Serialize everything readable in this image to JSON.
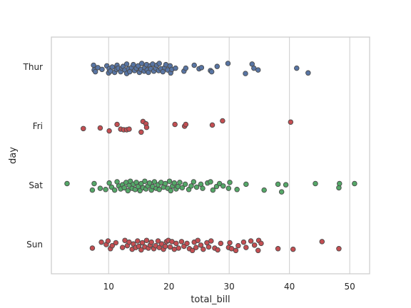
{
  "chart_data": {
    "type": "scatter",
    "subtype": "strip",
    "xlabel": "total_bill",
    "ylabel": "day",
    "xlim": [
      0.5,
      53.3
    ],
    "xticks": [
      10,
      20,
      30,
      40,
      50
    ],
    "categories": [
      "Thur",
      "Fri",
      "Sat",
      "Sun"
    ],
    "grid": "vertical",
    "marker_edge_color": "#4a4a4a",
    "series": [
      {
        "category": "Thur",
        "color": "#5875A4",
        "points": [
          [
            7.5,
            -0.03
          ],
          [
            7.6,
            0.05
          ],
          [
            7.8,
            0.08
          ],
          [
            8.2,
            0.01
          ],
          [
            8.9,
            0.04
          ],
          [
            9.7,
            -0.02
          ],
          [
            10.0,
            0.1
          ],
          [
            10.1,
            0.03
          ],
          [
            10.3,
            0.07
          ],
          [
            10.6,
            0.0
          ],
          [
            11.0,
            0.09
          ],
          [
            11.3,
            0.04
          ],
          [
            11.4,
            -0.03
          ],
          [
            11.6,
            0.02
          ],
          [
            12.0,
            0.08
          ],
          [
            12.2,
            0.02
          ],
          [
            12.4,
            -0.01
          ],
          [
            12.7,
            0.05
          ],
          [
            13.0,
            0.11
          ],
          [
            13.0,
            -0.05
          ],
          [
            13.3,
            0.03
          ],
          [
            13.5,
            0.08
          ],
          [
            13.8,
            0.01
          ],
          [
            14.1,
            -0.04
          ],
          [
            14.3,
            0.06
          ],
          [
            14.6,
            0.02
          ],
          [
            14.9,
            -0.02
          ],
          [
            15.1,
            0.09
          ],
          [
            15.4,
            0.04
          ],
          [
            15.5,
            -0.06
          ],
          [
            15.9,
            0.07
          ],
          [
            16.0,
            0.01
          ],
          [
            16.3,
            -0.04
          ],
          [
            16.4,
            0.05
          ],
          [
            16.6,
            0.09
          ],
          [
            16.9,
            -0.02
          ],
          [
            17.0,
            0.03
          ],
          [
            17.3,
            -0.05
          ],
          [
            17.5,
            0.07
          ],
          [
            17.8,
            0.02
          ],
          [
            18.0,
            -0.03
          ],
          [
            18.3,
            0.06
          ],
          [
            18.4,
            -0.06
          ],
          [
            18.7,
            0.03
          ],
          [
            19.0,
            0.08
          ],
          [
            19.3,
            0.01
          ],
          [
            19.5,
            -0.04
          ],
          [
            19.8,
            0.05
          ],
          [
            20.2,
            -0.02
          ],
          [
            20.3,
            0.1
          ],
          [
            20.5,
            0.04
          ],
          [
            21.1,
            0.02
          ],
          [
            22.5,
            0.07
          ],
          [
            22.8,
            0.02
          ],
          [
            24.2,
            -0.03
          ],
          [
            25.0,
            0.03
          ],
          [
            25.4,
            0.01
          ],
          [
            26.9,
            0.06
          ],
          [
            27.1,
            0.08
          ],
          [
            28.0,
            -0.01
          ],
          [
            29.8,
            -0.06
          ],
          [
            32.7,
            0.11
          ],
          [
            33.8,
            -0.05
          ],
          [
            34.1,
            0.02
          ],
          [
            34.8,
            0.05
          ],
          [
            41.2,
            0.02
          ],
          [
            43.1,
            0.1
          ]
        ]
      },
      {
        "category": "Fri",
        "color": "#C44E52",
        "points": [
          [
            5.8,
            0.04
          ],
          [
            8.6,
            0.03
          ],
          [
            10.1,
            0.08
          ],
          [
            11.4,
            -0.03
          ],
          [
            12.0,
            0.05
          ],
          [
            12.5,
            0.06
          ],
          [
            13.0,
            0.06
          ],
          [
            13.4,
            0.05
          ],
          [
            15.4,
            0.1
          ],
          [
            15.7,
            -0.08
          ],
          [
            16.2,
            -0.04
          ],
          [
            16.3,
            0.02
          ],
          [
            21.0,
            -0.03
          ],
          [
            22.6,
            0.0
          ],
          [
            22.8,
            -0.03
          ],
          [
            27.2,
            -0.02
          ],
          [
            28.9,
            -0.09
          ],
          [
            40.2,
            -0.07
          ]
        ]
      },
      {
        "category": "Sat",
        "color": "#55A868",
        "points": [
          [
            3.1,
            -0.03
          ],
          [
            7.3,
            0.08
          ],
          [
            7.6,
            -0.03
          ],
          [
            8.6,
            0.05
          ],
          [
            9.5,
            0.07
          ],
          [
            10.1,
            -0.04
          ],
          [
            10.5,
            0.03
          ],
          [
            11.0,
            0.08
          ],
          [
            11.4,
            -0.06
          ],
          [
            11.7,
            0.01
          ],
          [
            12.0,
            0.06
          ],
          [
            12.3,
            -0.01
          ],
          [
            12.6,
            0.04
          ],
          [
            12.9,
            -0.05
          ],
          [
            13.2,
            0.09
          ],
          [
            13.4,
            0.0
          ],
          [
            13.6,
            -0.07
          ],
          [
            13.9,
            0.05
          ],
          [
            14.1,
            -0.02
          ],
          [
            14.4,
            0.07
          ],
          [
            14.6,
            -0.05
          ],
          [
            14.9,
            0.02
          ],
          [
            15.2,
            0.09
          ],
          [
            15.4,
            -0.03
          ],
          [
            15.7,
            0.04
          ],
          [
            16.0,
            -0.07
          ],
          [
            16.2,
            0.06
          ],
          [
            16.5,
            0.01
          ],
          [
            16.8,
            -0.04
          ],
          [
            17.1,
            0.08
          ],
          [
            17.3,
            0.02
          ],
          [
            17.6,
            -0.06
          ],
          [
            17.9,
            0.05
          ],
          [
            18.2,
            -0.01
          ],
          [
            18.4,
            0.07
          ],
          [
            18.7,
            -0.05
          ],
          [
            19.1,
            0.03
          ],
          [
            19.4,
            -0.03
          ],
          [
            19.8,
            0.05
          ],
          [
            20.1,
            -0.07
          ],
          [
            20.3,
            0.09
          ],
          [
            20.6,
            0.01
          ],
          [
            20.9,
            -0.04
          ],
          [
            21.2,
            0.06
          ],
          [
            21.5,
            0.02
          ],
          [
            21.8,
            -0.05
          ],
          [
            22.2,
            0.04
          ],
          [
            22.7,
            -0.02
          ],
          [
            23.3,
            0.07
          ],
          [
            23.7,
            0.01
          ],
          [
            24.1,
            -0.06
          ],
          [
            24.6,
            0.03
          ],
          [
            25.3,
            -0.02
          ],
          [
            25.6,
            0.05
          ],
          [
            26.4,
            -0.04
          ],
          [
            26.9,
            -0.06
          ],
          [
            27.3,
            0.08
          ],
          [
            27.9,
            0.02
          ],
          [
            28.4,
            -0.03
          ],
          [
            29.0,
            0.01
          ],
          [
            29.9,
            0.05
          ],
          [
            30.1,
            -0.05
          ],
          [
            31.3,
            0.07
          ],
          [
            32.8,
            -0.02
          ],
          [
            35.8,
            0.08
          ],
          [
            38.1,
            -0.02
          ],
          [
            38.7,
            0.11
          ],
          [
            39.4,
            -0.01
          ],
          [
            44.3,
            -0.03
          ],
          [
            48.2,
            0.04
          ],
          [
            48.3,
            -0.03
          ],
          [
            50.8,
            -0.03
          ]
        ]
      },
      {
        "category": "Sun",
        "color": "#C44E52",
        "points": [
          [
            7.3,
            0.06
          ],
          [
            8.8,
            -0.04
          ],
          [
            9.6,
            0.0
          ],
          [
            9.9,
            -0.06
          ],
          [
            10.3,
            0.07
          ],
          [
            10.6,
            0.02
          ],
          [
            11.2,
            -0.03
          ],
          [
            12.3,
            0.05
          ],
          [
            12.7,
            -0.07
          ],
          [
            13.1,
            0.02
          ],
          [
            13.4,
            -0.04
          ],
          [
            13.9,
            0.08
          ],
          [
            14.1,
            -0.01
          ],
          [
            14.5,
            0.05
          ],
          [
            14.8,
            -0.06
          ],
          [
            15.0,
            0.03
          ],
          [
            15.4,
            0.09
          ],
          [
            15.6,
            -0.03
          ],
          [
            16.0,
            0.04
          ],
          [
            16.3,
            -0.07
          ],
          [
            16.6,
            0.06
          ],
          [
            16.9,
            0.01
          ],
          [
            17.1,
            -0.04
          ],
          [
            17.5,
            0.07
          ],
          [
            17.8,
            0.02
          ],
          [
            18.2,
            -0.06
          ],
          [
            18.4,
            0.05
          ],
          [
            18.8,
            -0.01
          ],
          [
            19.1,
            0.08
          ],
          [
            19.4,
            0.03
          ],
          [
            19.6,
            -0.05
          ],
          [
            19.9,
            -0.07
          ],
          [
            20.2,
            0.04
          ],
          [
            20.5,
            -0.05
          ],
          [
            20.9,
            0.08
          ],
          [
            21.2,
            -0.02
          ],
          [
            21.6,
            0.06
          ],
          [
            22.1,
            -0.05
          ],
          [
            22.5,
            0.03
          ],
          [
            23.0,
            -0.02
          ],
          [
            23.4,
            0.07
          ],
          [
            23.9,
            0.1
          ],
          [
            24.2,
            -0.04
          ],
          [
            24.5,
            0.05
          ],
          [
            24.8,
            -0.07
          ],
          [
            25.3,
            0.01
          ],
          [
            25.7,
            0.08
          ],
          [
            26.3,
            -0.03
          ],
          [
            26.6,
            0.04
          ],
          [
            27.0,
            -0.06
          ],
          [
            27.6,
            0.06
          ],
          [
            28.1,
            0.09
          ],
          [
            28.6,
            -0.02
          ],
          [
            29.9,
            0.05
          ],
          [
            30.1,
            -0.03
          ],
          [
            30.4,
            0.07
          ],
          [
            31.1,
            0.1
          ],
          [
            31.5,
            0.02
          ],
          [
            32.4,
            -0.04
          ],
          [
            32.8,
            0.05
          ],
          [
            33.6,
            -0.06
          ],
          [
            34.2,
            0.01
          ],
          [
            34.8,
            0.1
          ],
          [
            34.9,
            -0.07
          ],
          [
            35.3,
            -0.02
          ],
          [
            38.1,
            0.07
          ],
          [
            40.6,
            0.08
          ],
          [
            45.4,
            -0.05
          ],
          [
            48.2,
            0.07
          ]
        ]
      }
    ]
  }
}
